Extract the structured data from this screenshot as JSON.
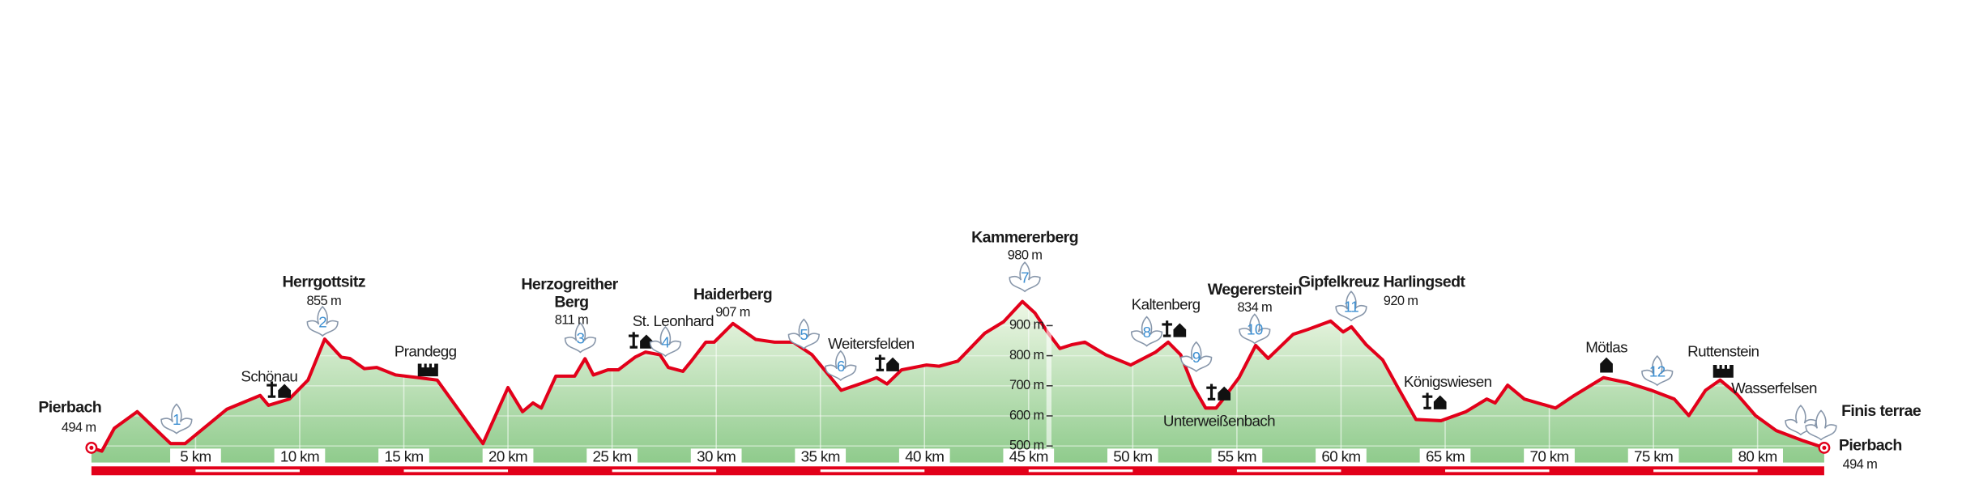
{
  "chart_data": {
    "type": "line",
    "x": [
      0,
      0.5,
      1.1,
      2.2,
      3.8,
      4.5,
      6.5,
      8.1,
      8.5,
      9.5,
      10.4,
      11.2,
      12.0,
      12.4,
      13.1,
      13.7,
      14.6,
      15.7,
      16.6,
      18.8,
      20.0,
      20.7,
      21.2,
      21.6,
      22.3,
      23.2,
      23.7,
      24.1,
      24.8,
      25.3,
      26.1,
      26.6,
      27.3,
      27.7,
      28.4,
      28.8,
      29.5,
      29.9,
      30.8,
      31.9,
      32.8,
      33.7,
      34.6,
      36.0,
      37.1,
      37.7,
      38.2,
      38.9,
      40.1,
      40.7,
      41.6,
      42.9,
      43.8,
      44.7,
      45.3,
      45.9,
      46.5,
      47.1,
      47.7,
      48.7,
      49.9,
      51.1,
      51.7,
      52.3,
      52.9,
      53.5,
      54.0,
      54.3,
      55.1,
      55.9,
      56.5,
      57.7,
      58.4,
      59.5,
      60.1,
      60.5,
      61.2,
      62.0,
      62.7,
      63.6,
      64.8,
      66.0,
      67.0,
      67.4,
      68.0,
      68.8,
      70.3,
      71.2,
      72.6,
      73.7,
      74.9,
      76.0,
      76.7,
      77.5,
      78.2,
      79.0,
      79.9,
      80.9,
      82.2,
      83.2
    ],
    "series": [
      {
        "name": "Elevation",
        "color": "#e2001a",
        "values": [
          494,
          483,
          559,
          614,
          508,
          508,
          622,
          668,
          635,
          656,
          719,
          855,
          795,
          791,
          757,
          761,
          736,
          727,
          719,
          508,
          694,
          614,
          643,
          626,
          732,
          732,
          790,
          736,
          753,
          753,
          795,
          812,
          803,
          761,
          748,
          782,
          845,
          845,
          907,
          854,
          845,
          845,
          803,
          685,
          711,
          727,
          706,
          753,
          769,
          765,
          782,
          875,
          913,
          980,
          942,
          879,
          824,
          837,
          845,
          803,
          769,
          812,
          845,
          803,
          698,
          626,
          626,
          652,
          727,
          834,
          791,
          871,
          887,
          915,
          879,
          896,
          837,
          786,
          698,
          588,
          584,
          614,
          656,
          643,
          702,
          656,
          626,
          668,
          727,
          711,
          685,
          656,
          601,
          685,
          719,
          673,
          601,
          551,
          517,
          494
        ]
      }
    ],
    "xlim": [
      0,
      83.2
    ],
    "ylim": [
      445,
      1000
    ],
    "xticks": [
      {
        "value": 5,
        "label": "5 km"
      },
      {
        "value": 10,
        "label": "10 km"
      },
      {
        "value": 15,
        "label": "15 km"
      },
      {
        "value": 20,
        "label": "20 km"
      },
      {
        "value": 25,
        "label": "25 km"
      },
      {
        "value": 30,
        "label": "30 km"
      },
      {
        "value": 35,
        "label": "35 km"
      },
      {
        "value": 40,
        "label": "40 km"
      },
      {
        "value": 45,
        "label": "45 km"
      },
      {
        "value": 50,
        "label": "50 km"
      },
      {
        "value": 55,
        "label": "55 km"
      },
      {
        "value": 60,
        "label": "60 km"
      },
      {
        "value": 65,
        "label": "65 km"
      },
      {
        "value": 70,
        "label": "70 km"
      },
      {
        "value": 75,
        "label": "75 km"
      },
      {
        "value": 80,
        "label": "80 km"
      }
    ],
    "yticks": [
      {
        "value": 500,
        "label": "500 m"
      },
      {
        "value": 600,
        "label": "600 m"
      },
      {
        "value": 700,
        "label": "700 m"
      },
      {
        "value": 800,
        "label": "800 m"
      },
      {
        "value": 900,
        "label": "900 m"
      }
    ],
    "grid": true,
    "annotations": [
      {
        "name": "Pierbach",
        "elevation": "494 m"
      },
      {
        "name": "Schönau"
      },
      {
        "name": "Herrgottsitz",
        "elevation": "855 m"
      },
      {
        "name": "Prandegg"
      },
      {
        "name": "Herzogreither Berg",
        "elevation": "811 m"
      },
      {
        "name": "St. Leonhard"
      },
      {
        "name": "Haiderberg",
        "elevation": "907 m"
      },
      {
        "name": "Weitersfelden"
      },
      {
        "name": "Kammererberg",
        "elevation": "980 m"
      },
      {
        "name": "Kaltenberg"
      },
      {
        "name": "Unterweißenbach"
      },
      {
        "name": "Wegererstein",
        "elevation": "834 m"
      },
      {
        "name": "Gipfelkreuz Harlingsedt",
        "elevation": "920 m"
      },
      {
        "name": "Königswiesen"
      },
      {
        "name": "Mötlas"
      },
      {
        "name": "Ruttenstein"
      },
      {
        "name": "Wasserfelsen"
      },
      {
        "name": "Finis terrae"
      },
      {
        "name": "Pierbach",
        "elevation": "494 m"
      }
    ],
    "stage_markers": [
      1,
      2,
      3,
      4,
      5,
      6,
      7,
      8,
      9,
      10,
      11,
      12
    ]
  }
}
